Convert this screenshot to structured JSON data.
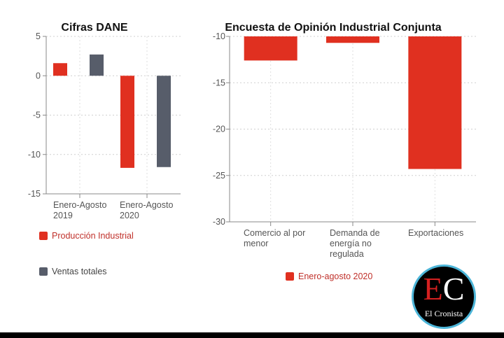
{
  "colors": {
    "red": "#e03020",
    "grey": "#575d6a"
  },
  "chart_data": [
    {
      "type": "bar",
      "title": "Cifras DANE",
      "categories": [
        "Enero-Agosto 2019",
        "Enero-Agosto 2020"
      ],
      "category_lines": [
        [
          "Enero-Agosto",
          "2019"
        ],
        [
          "Enero-Agosto",
          "2020"
        ]
      ],
      "series": [
        {
          "name": "Producción Industrial",
          "color": "#e03020",
          "values": [
            1.6,
            -11.7
          ]
        },
        {
          "name": "Ventas totales",
          "color": "#575d6a",
          "values": [
            2.7,
            -11.6
          ]
        }
      ],
      "ylim": [
        -15,
        5
      ],
      "yticks": [
        5,
        0,
        -5,
        -10,
        -15
      ],
      "grid": true,
      "legend": "bottom-left"
    },
    {
      "type": "bar",
      "title": "Encuesta de Opinión Industrial Conjunta",
      "categories": [
        "Comercio al por menor",
        "Demanda de energía no regulada",
        "Exportaciones"
      ],
      "category_lines": [
        [
          "Comercio al por",
          "menor"
        ],
        [
          "Demanda de",
          "energía no",
          "regulada"
        ],
        [
          "Exportaciones"
        ]
      ],
      "series": [
        {
          "name": "Enero-agosto 2020",
          "color": "#e03020",
          "values": [
            -12.6,
            -10.7,
            -24.3
          ]
        }
      ],
      "baseline": -10,
      "ylim": [
        -30,
        -10
      ],
      "yticks": [
        -10,
        -15,
        -20,
        -25,
        -30
      ],
      "grid": true,
      "legend": "bottom-center"
    }
  ],
  "legends": {
    "left": [
      {
        "label": "Producción Industrial",
        "color": "#e03020",
        "text_color": "#c0302a"
      },
      {
        "label": "Ventas totales",
        "color": "#575d6a",
        "text_color": "#444444"
      }
    ],
    "right": [
      {
        "label": "Enero-agosto 2020",
        "color": "#e03020",
        "text_color": "#c0302a"
      }
    ]
  },
  "logo": {
    "letter1": "E",
    "letter2": "C",
    "name": "El Cronista"
  }
}
